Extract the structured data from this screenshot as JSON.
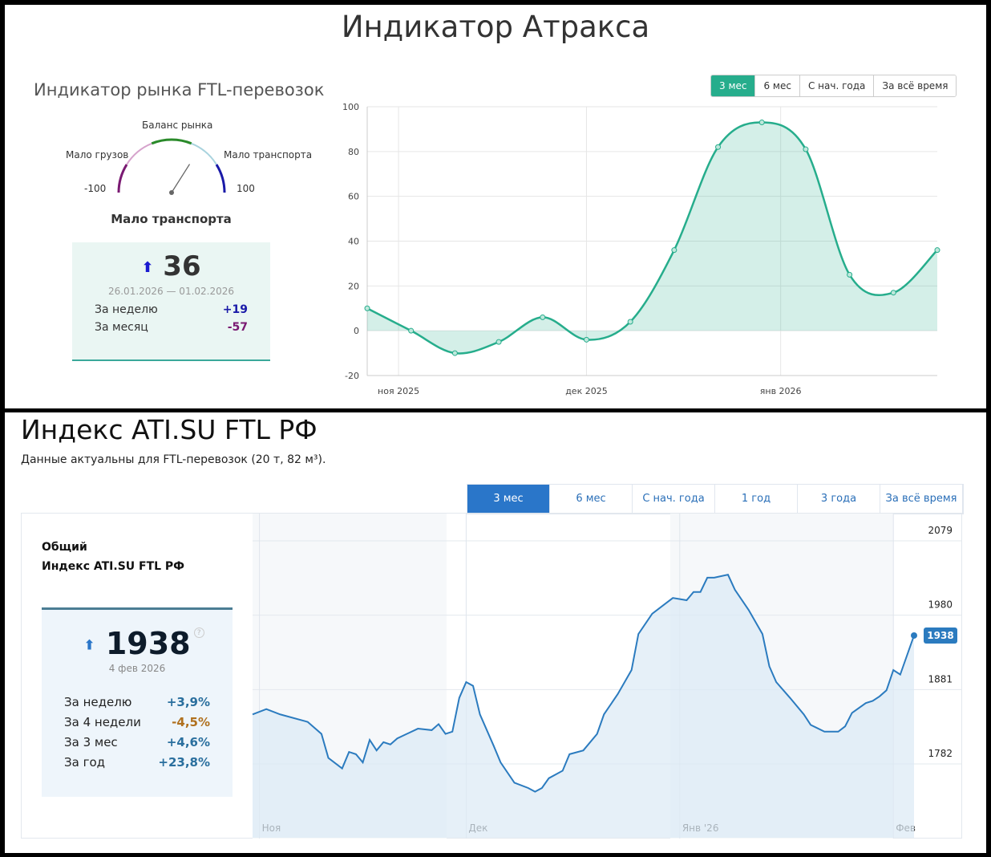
{
  "top": {
    "title": "Индикатор Атракса",
    "subtitle": "Индикатор рынка FTL-перевозок",
    "gauge": {
      "label_top": "Баланс рынка",
      "label_left": "Мало грузов",
      "label_right": "Мало транспорта",
      "min": "-100",
      "max": "100",
      "value": 36,
      "state": "Мало транспорта",
      "colors": [
        "#7a1a72",
        "#d6a3cc",
        "#2a8a2a",
        "#a9d3de",
        "#1a1aa8"
      ]
    },
    "card": {
      "arrow": "arrow-up-icon",
      "value": "36",
      "period": "26.01.2026 — 01.02.2026",
      "rows": [
        {
          "label": "За неделю",
          "value": "+19",
          "color": "#1a1aa8"
        },
        {
          "label": "За месяц",
          "value": "-57",
          "color": "#7a1a72"
        }
      ]
    },
    "buttons": [
      {
        "label": "3 мес",
        "active": true
      },
      {
        "label": "6 мес"
      },
      {
        "label": "С нач. года"
      },
      {
        "label": "За всё время"
      }
    ]
  },
  "bottom": {
    "title": "Индекс ATI.SU FTL РФ",
    "subtitle": "Данные актуальны для FTL-перевозок (20 т, 82 м³).",
    "card_title1": "Общий",
    "card_title2": "Индекс ATI.SU FTL РФ",
    "card": {
      "arrow": "arrow-up-icon",
      "value": "1938",
      "help": "?",
      "date": "4 фев 2026",
      "rows": [
        {
          "label": "За неделю",
          "value": "+3,9%",
          "color": "#2a6f9e"
        },
        {
          "label": "За 4 недели",
          "value": "-4,5%",
          "color": "#b0701e"
        },
        {
          "label": "За 3 мес",
          "value": "+4,6%",
          "color": "#2a6f9e"
        },
        {
          "label": "За год",
          "value": "+23,8%",
          "color": "#2a6f9e"
        }
      ]
    },
    "tabs": [
      {
        "label": "3 мес",
        "active": true
      },
      {
        "label": "6 мес"
      },
      {
        "label": "С нач. года"
      },
      {
        "label": "1 год"
      },
      {
        "label": "3 года"
      },
      {
        "label": "За всё время"
      }
    ]
  },
  "chart_data": [
    {
      "type": "area",
      "color": "#26ad8c",
      "ylim": [
        -20,
        100
      ],
      "yticks": [
        100,
        80,
        60,
        40,
        20,
        0,
        -20
      ],
      "grid": true,
      "xticks": [
        {
          "date": "2025-11-01",
          "label": "ноя 2025"
        },
        {
          "date": "2025-12-01",
          "label": "дек 2025"
        },
        {
          "date": "2026-01-01",
          "label": "янв 2026"
        }
      ],
      "x": [
        "2025-10-27",
        "2025-11-03",
        "2025-11-10",
        "2025-11-17",
        "2025-11-24",
        "2025-12-01",
        "2025-12-08",
        "2025-12-15",
        "2025-12-22",
        "2025-12-29",
        "2026-01-05",
        "2026-01-12",
        "2026-01-19",
        "2026-01-26"
      ],
      "values": [
        10,
        0,
        -10,
        -5,
        6,
        -4,
        4,
        36,
        82,
        93,
        81,
        25,
        17,
        36
      ]
    },
    {
      "type": "area",
      "color": "#2b7bbf",
      "ylim": [
        1700,
        2079
      ],
      "yticks": [
        2079,
        1980,
        1881,
        1782
      ],
      "grid": true,
      "last_label": "1938",
      "xticks": [
        {
          "date": "2025-11-01",
          "label": "Ноя"
        },
        {
          "date": "2025-12-01",
          "label": "Дек"
        },
        {
          "date": "2026-01-01",
          "label": "Янв '26"
        },
        {
          "date": "2026-02-01",
          "label": "Фев"
        }
      ],
      "points": [
        [
          "2025-10-31",
          1833
        ],
        [
          "2025-11-02",
          1840
        ],
        [
          "2025-11-04",
          1833
        ],
        [
          "2025-11-08",
          1823
        ],
        [
          "2025-11-10",
          1807
        ],
        [
          "2025-11-11",
          1775
        ],
        [
          "2025-11-13",
          1761
        ],
        [
          "2025-11-14",
          1783
        ],
        [
          "2025-11-15",
          1780
        ],
        [
          "2025-11-16",
          1769
        ],
        [
          "2025-11-17",
          1799
        ],
        [
          "2025-11-18",
          1785
        ],
        [
          "2025-11-19",
          1796
        ],
        [
          "2025-11-20",
          1793
        ],
        [
          "2025-11-21",
          1801
        ],
        [
          "2025-11-24",
          1814
        ],
        [
          "2025-11-26",
          1812
        ],
        [
          "2025-11-27",
          1820
        ],
        [
          "2025-11-28",
          1807
        ],
        [
          "2025-11-29",
          1810
        ],
        [
          "2025-11-30",
          1855
        ],
        [
          "2025-12-01",
          1876
        ],
        [
          "2025-12-02",
          1871
        ],
        [
          "2025-12-03",
          1833
        ],
        [
          "2025-12-05",
          1791
        ],
        [
          "2025-12-06",
          1769
        ],
        [
          "2025-12-08",
          1742
        ],
        [
          "2025-12-10",
          1735
        ],
        [
          "2025-12-11",
          1730
        ],
        [
          "2025-12-12",
          1735
        ],
        [
          "2025-12-13",
          1748
        ],
        [
          "2025-12-15",
          1758
        ],
        [
          "2025-12-16",
          1780
        ],
        [
          "2025-12-18",
          1785
        ],
        [
          "2025-12-20",
          1807
        ],
        [
          "2025-12-21",
          1833
        ],
        [
          "2025-12-23",
          1860
        ],
        [
          "2025-12-25",
          1892
        ],
        [
          "2025-12-26",
          1940
        ],
        [
          "2025-12-28",
          1967
        ],
        [
          "2025-12-30",
          1981
        ],
        [
          "2025-12-31",
          1988
        ],
        [
          "2026-01-02",
          1985
        ],
        [
          "2026-01-03",
          1996
        ],
        [
          "2026-01-04",
          1996
        ],
        [
          "2026-01-05",
          2015
        ],
        [
          "2026-01-06",
          2015
        ],
        [
          "2026-01-08",
          2019
        ],
        [
          "2026-01-09",
          1999
        ],
        [
          "2026-01-11",
          1972
        ],
        [
          "2026-01-13",
          1940
        ],
        [
          "2026-01-14",
          1897
        ],
        [
          "2026-01-15",
          1876
        ],
        [
          "2026-01-17",
          1855
        ],
        [
          "2026-01-19",
          1833
        ],
        [
          "2026-01-20",
          1819
        ],
        [
          "2026-01-22",
          1810
        ],
        [
          "2026-01-24",
          1810
        ],
        [
          "2026-01-25",
          1817
        ],
        [
          "2026-01-26",
          1835
        ],
        [
          "2026-01-28",
          1848
        ],
        [
          "2026-01-29",
          1851
        ],
        [
          "2026-01-30",
          1857
        ],
        [
          "2026-01-31",
          1865
        ],
        [
          "2026-02-01",
          1892
        ],
        [
          "2026-02-02",
          1886
        ],
        [
          "2026-02-04",
          1938
        ]
      ]
    }
  ]
}
